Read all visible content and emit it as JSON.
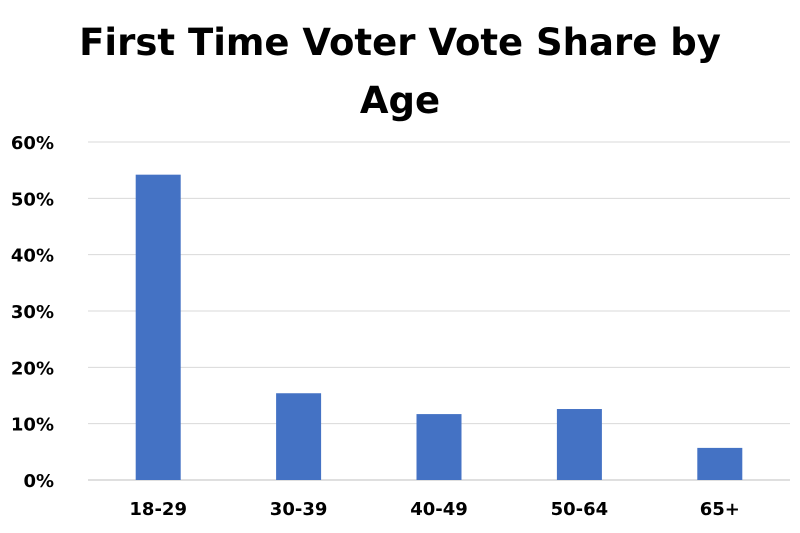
{
  "chart_data": {
    "type": "bar",
    "title": [
      "First Time Voter Vote Share by",
      "Age"
    ],
    "xlabel": "",
    "ylabel": "",
    "categories": [
      "18-29",
      "30-39",
      "40-49",
      "50-64",
      "65+"
    ],
    "values": [
      54.2,
      15.4,
      11.7,
      12.6,
      5.7
    ],
    "ylim": [
      0,
      60
    ],
    "yticks": [
      0,
      10,
      20,
      30,
      40,
      50,
      60
    ],
    "ytick_labels": [
      "0%",
      "10%",
      "20%",
      "30%",
      "40%",
      "50%",
      "60%"
    ],
    "grid": true,
    "legend": "none",
    "bar_color": "#4472C4",
    "grid_color": "#D9D9D9",
    "axis_color": "#BFBFBF"
  }
}
